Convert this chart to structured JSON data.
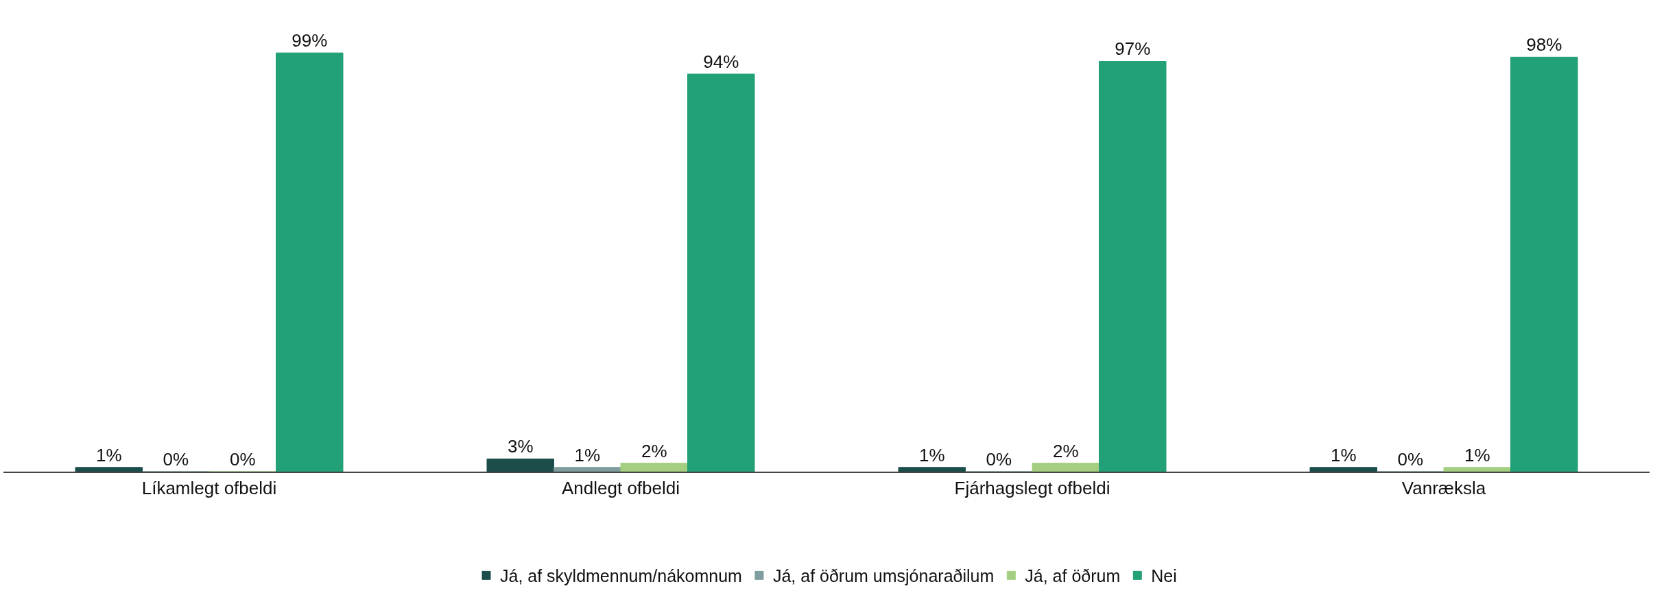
{
  "chart_data": {
    "type": "bar",
    "categories": [
      "Líkamlegt ofbeldi",
      "Andlegt ofbeldi",
      "Fjárhagslegt ofbeldi",
      "Vanræksla"
    ],
    "series": [
      {
        "name": "Já, af skyldmennum/nákomnum",
        "color": "#1b4d4b",
        "values": [
          1,
          3,
          1,
          1
        ],
        "value_labels": [
          "1%",
          "3%",
          "1%",
          "1%"
        ]
      },
      {
        "name": "Já, af öðrum umsjónaraðilum",
        "color": "#7f9d9e",
        "values": [
          0,
          1,
          0,
          0
        ],
        "value_labels": [
          "0%",
          "1%",
          "0%",
          "0%"
        ]
      },
      {
        "name": "Já, af öðrum",
        "color": "#a5cf80",
        "values": [
          0,
          2,
          2,
          1
        ],
        "value_labels": [
          "0%",
          "2%",
          "2%",
          "1%"
        ]
      },
      {
        "name": "Nei",
        "color": "#22a077",
        "values": [
          99,
          94,
          97,
          98
        ],
        "value_labels": [
          "99%",
          "94%",
          "97%",
          "98%"
        ]
      }
    ],
    "legend": "bottom"
  }
}
